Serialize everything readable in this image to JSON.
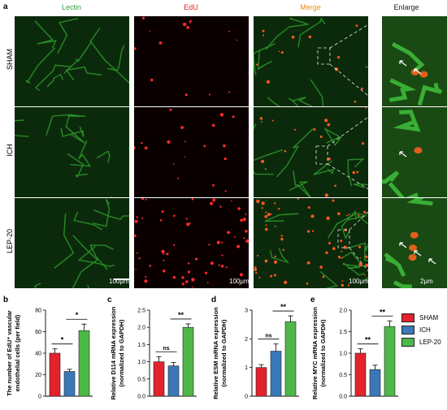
{
  "panel_a": {
    "label": "a",
    "columns": [
      {
        "label": "Lectin",
        "color": "#2e9e3c"
      },
      {
        "label": "EdU",
        "color": "#e0202a"
      },
      {
        "label": "Merge",
        "color": "#f08a00"
      },
      {
        "label": "Enlarge",
        "color": "#222222"
      }
    ],
    "rows": [
      "SHAM",
      "ICH",
      "LEP-20"
    ],
    "scale_main": "100μm",
    "scale_enlarge": "2μm"
  },
  "legend": [
    {
      "name": "SHAM",
      "color": "#e3222b"
    },
    {
      "name": "ICH",
      "color": "#3a78b8"
    },
    {
      "name": "LEP-20",
      "color": "#4db848"
    }
  ],
  "chart_data": [
    {
      "panel": "b",
      "type": "bar",
      "categories": [
        "SHAM",
        "ICH",
        "LEP-20"
      ],
      "values": [
        40,
        23,
        61
      ],
      "errors": [
        4,
        2,
        6
      ],
      "ylabel_line1": "The number of EdU⁺ vascular",
      "ylabel_line2": "endothelial cells (per field)",
      "ylim": [
        0,
        80
      ],
      "yticks": [
        "0",
        "20",
        "40",
        "60",
        "80"
      ],
      "significance": [
        {
          "from": 0,
          "to": 1,
          "label": "*"
        },
        {
          "from": 1,
          "to": 2,
          "label": "*"
        }
      ]
    },
    {
      "panel": "c",
      "type": "bar",
      "categories": [
        "SHAM",
        "ICH",
        "LEP-20"
      ],
      "values": [
        1.0,
        0.88,
        2.0
      ],
      "errors": [
        0.15,
        0.1,
        0.1
      ],
      "ylabel_line1": "Relative D114 mRNA expression",
      "ylabel_line2": "(normalized to GAPDH)",
      "ylim": [
        0,
        2.5
      ],
      "yticks": [
        "0.0",
        "0.5",
        "1.0",
        "1.5",
        "2.0",
        "2.5"
      ],
      "significance": [
        {
          "from": 0,
          "to": 1,
          "label": "ns"
        },
        {
          "from": 1,
          "to": 2,
          "label": "**"
        }
      ]
    },
    {
      "panel": "d",
      "type": "bar",
      "categories": [
        "SHAM",
        "ICH",
        "LEP-20"
      ],
      "values": [
        1.0,
        1.57,
        2.6
      ],
      "errors": [
        0.1,
        0.25,
        0.2
      ],
      "ylabel_line1": "Relative ESM mRNA expression",
      "ylabel_line2": "(normalized to GAPDH)",
      "ylim": [
        0,
        3
      ],
      "yticks": [
        "0",
        "1",
        "2",
        "3"
      ],
      "significance": [
        {
          "from": 0,
          "to": 1,
          "label": "ns"
        },
        {
          "from": 1,
          "to": 2,
          "label": "**"
        }
      ]
    },
    {
      "panel": "e",
      "type": "bar",
      "categories": [
        "SHAM",
        "ICH",
        "LEP-20"
      ],
      "values": [
        1.0,
        0.62,
        1.62
      ],
      "errors": [
        0.1,
        0.1,
        0.13
      ],
      "ylabel_line1": "Relative MYC mRNA expression",
      "ylabel_line2": "(normalized to GAPDH)",
      "ylim": [
        0,
        2.0
      ],
      "yticks": [
        "0.0",
        "0.5",
        "1.0",
        "1.5",
        "2.0"
      ],
      "significance": [
        {
          "from": 0,
          "to": 1,
          "label": "**"
        },
        {
          "from": 1,
          "to": 2,
          "label": "**"
        }
      ]
    }
  ]
}
